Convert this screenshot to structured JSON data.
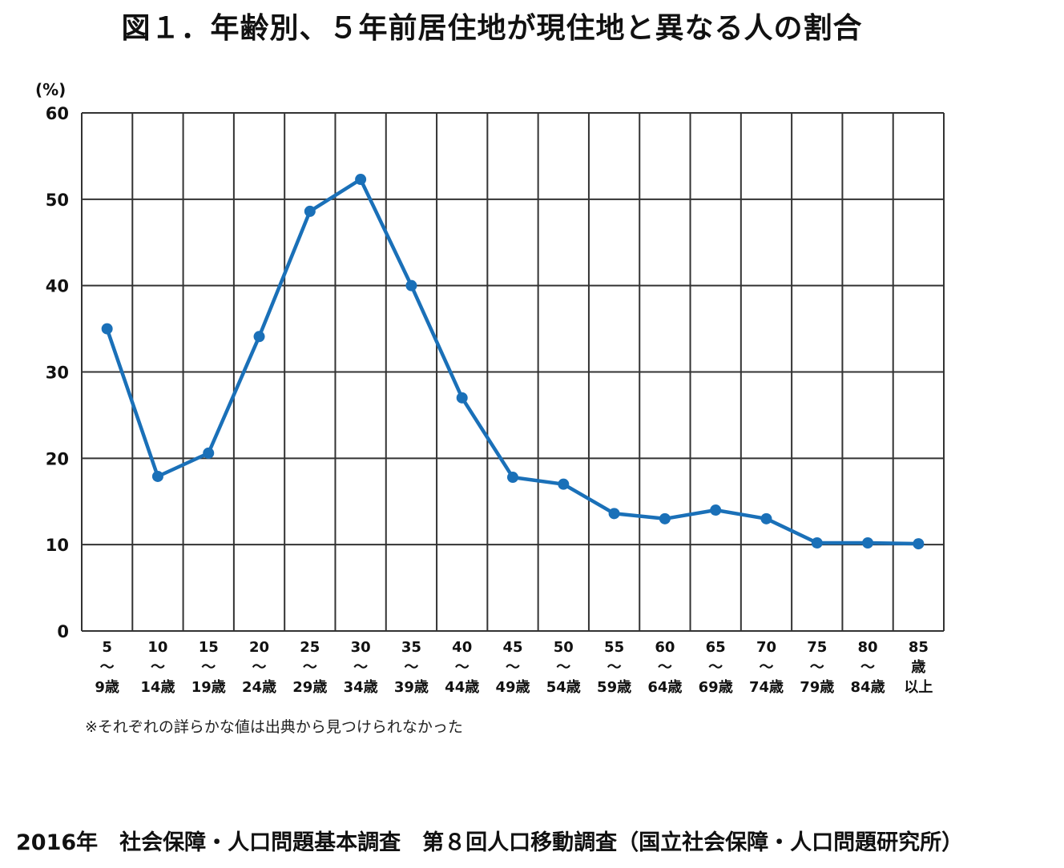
{
  "title": "図１．年齢別、５年前居住地が現住地と異なる人の割合",
  "note": "※それぞれの詳らかな値は出典から見つけられなかった",
  "source": "2016年　社会保障・人口問題基本調査　第８回人口移動調査（国立社会保障・人口問題研究所）",
  "chart_data": {
    "type": "line",
    "title": "図１．年齢別、５年前居住地が現住地と異なる人の割合",
    "ylabel": "(%)",
    "xlabel": "",
    "ylim": [
      0,
      60
    ],
    "yticks": [
      0,
      10,
      20,
      30,
      40,
      50,
      60
    ],
    "grid": true,
    "legend": "none",
    "line_color": "#1a70b8",
    "categories": [
      [
        "5",
        "～",
        "9歳"
      ],
      [
        "10",
        "～",
        "14歳"
      ],
      [
        "15",
        "～",
        "19歳"
      ],
      [
        "20",
        "～",
        "24歳"
      ],
      [
        "25",
        "～",
        "29歳"
      ],
      [
        "30",
        "～",
        "34歳"
      ],
      [
        "35",
        "～",
        "39歳"
      ],
      [
        "40",
        "～",
        "44歳"
      ],
      [
        "45",
        "～",
        "49歳"
      ],
      [
        "50",
        "～",
        "54歳"
      ],
      [
        "55",
        "～",
        "59歳"
      ],
      [
        "60",
        "～",
        "64歳"
      ],
      [
        "65",
        "～",
        "69歳"
      ],
      [
        "70",
        "～",
        "74歳"
      ],
      [
        "75",
        "～",
        "79歳"
      ],
      [
        "80",
        "～",
        "84歳"
      ],
      [
        "85",
        "歳",
        "以上"
      ]
    ],
    "values": [
      35.0,
      17.9,
      20.6,
      34.1,
      48.6,
      52.3,
      40.0,
      27.0,
      17.8,
      17.0,
      13.6,
      13.0,
      14.0,
      13.0,
      10.2,
      10.2,
      10.1
    ]
  }
}
